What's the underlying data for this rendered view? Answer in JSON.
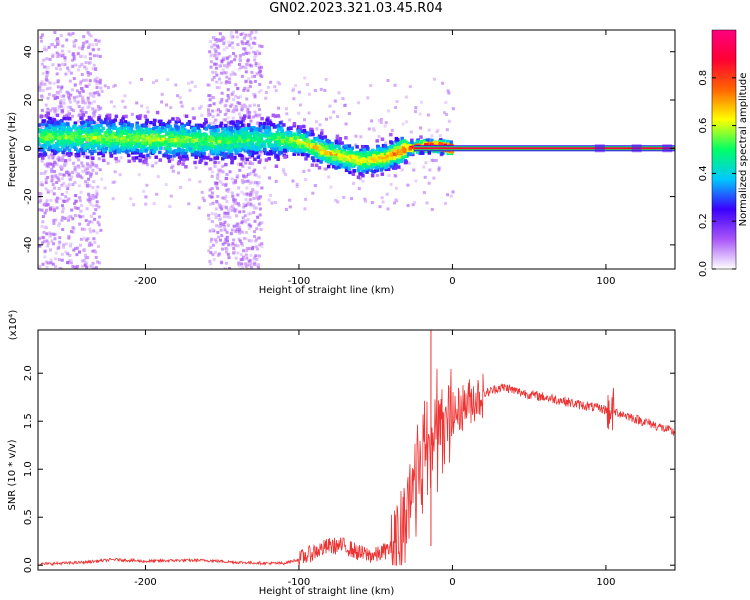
{
  "title": "GN02.2023.321.03.45.R04",
  "chart_data": [
    {
      "type": "heatmap",
      "xlabel": "Height of straight line (km)",
      "ylabel": "Frequency (Hz)",
      "xlim": [
        -270,
        145
      ],
      "ylim": [
        -50,
        49
      ],
      "xticks": [
        "-200",
        "-100",
        "0",
        "100"
      ],
      "xtick_values": [
        -200,
        -100,
        0,
        100
      ],
      "yticks": [
        "40",
        "20",
        "0",
        "-20",
        "-40"
      ],
      "ytick_values": [
        40,
        20,
        0,
        -20,
        -40
      ],
      "colorbar": {
        "label": "Normalized spectral amplitude",
        "range": [
          0,
          1
        ],
        "ticks": [
          "0.0",
          "0.2",
          "0.4",
          "0.6",
          "0.8"
        ],
        "tick_values": [
          0.0,
          0.2,
          0.4,
          0.6,
          0.8
        ],
        "colors": [
          "#ffffff",
          "#a855f7",
          "#3b00ff",
          "#00c8ff",
          "#00ff66",
          "#ffff00",
          "#ff6600",
          "#ff0033",
          "#ff0080"
        ]
      },
      "ridge": {
        "x": [
          -270,
          -200,
          -150,
          -120,
          -100,
          -80,
          -60,
          -45,
          -30,
          -20,
          -10,
          0,
          50,
          100,
          145
        ],
        "center_hz": [
          5,
          4,
          3,
          4,
          3,
          -2,
          -5,
          -4,
          0,
          1,
          1,
          0,
          0,
          0,
          0
        ],
        "peak_amplitude": [
          0.35,
          0.4,
          0.35,
          0.3,
          0.45,
          0.5,
          0.45,
          0.5,
          0.6,
          0.7,
          0.85,
          0.9,
          0.9,
          0.9,
          0.9
        ]
      },
      "noise_bands_x": [
        [
          -270,
          -230
        ],
        [
          -160,
          -125
        ]
      ]
    },
    {
      "type": "line",
      "xlabel": "Height of straight line (km)",
      "ylabel": "SNR (10 * v/v)",
      "y_multiplier": "(x10⁴)",
      "xlim": [
        -270,
        145
      ],
      "ylim": [
        -0.05,
        2.45
      ],
      "xticks": [
        "-200",
        "-100",
        "0",
        "100"
      ],
      "xtick_values": [
        -200,
        -100,
        0,
        100
      ],
      "yticks": [
        "0.0",
        "0.5",
        "1.0",
        "1.5",
        "2.0"
      ],
      "ytick_values": [
        0.0,
        0.5,
        1.0,
        1.5,
        2.0
      ],
      "color": "#ee3333",
      "series": [
        {
          "x": [
            -270,
            -240,
            -220,
            -200,
            -180,
            -160,
            -140,
            -120,
            -110,
            -100,
            -90,
            -80,
            -70,
            -60,
            -50,
            -40,
            -35,
            -30,
            -25,
            -20,
            -15,
            -10,
            -5,
            0,
            10,
            20,
            30,
            35,
            40,
            50,
            60,
            70,
            80,
            90,
            100,
            110,
            120,
            130,
            145
          ],
          "y": [
            0.01,
            0.03,
            0.06,
            0.04,
            0.05,
            0.05,
            0.03,
            0.02,
            0.02,
            0.06,
            0.14,
            0.2,
            0.2,
            0.12,
            0.1,
            0.18,
            0.25,
            0.55,
            0.9,
            1.1,
            1.25,
            1.45,
            1.45,
            1.55,
            1.7,
            1.78,
            1.85,
            1.85,
            1.82,
            1.78,
            1.75,
            1.72,
            1.68,
            1.65,
            1.62,
            1.58,
            1.52,
            1.47,
            1.38
          ]
        }
      ]
    }
  ]
}
